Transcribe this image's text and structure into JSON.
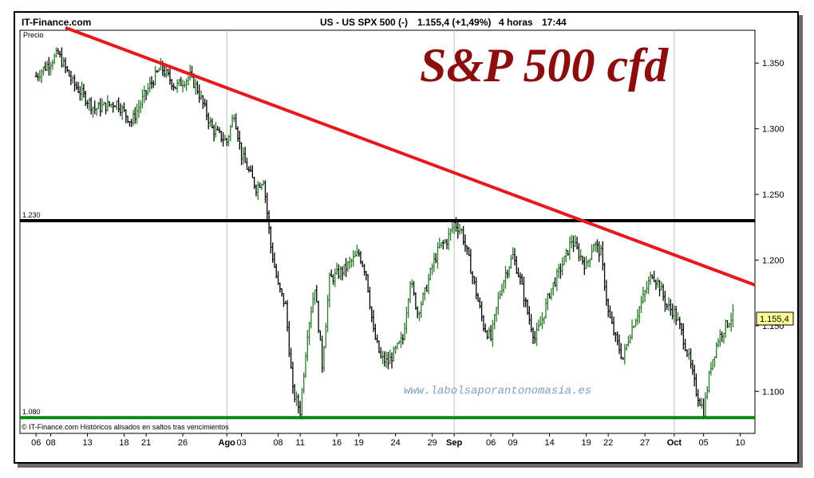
{
  "header": {
    "brand": "IT-Finance.com",
    "instrument": "US - US SPX 500 (-)",
    "price": "1.155,4 (+1,49%)",
    "timeframe": "4 horas",
    "time": "17:44"
  },
  "footer": {
    "copyright": "© IT-Finance.com  Históricos alisados en saltos tras vencimientos"
  },
  "watermark": "www.labolsaporantonomasia.es",
  "colors": {
    "trendline": "#e8191c",
    "resistance": "#000000",
    "support": "#0a8a12",
    "bar_up": "#2a7a2a",
    "bar_down": "#000000",
    "title": "#8b0d0d",
    "last_price_box": "#ffff99"
  },
  "chart_data": {
    "type": "ohlc-bar",
    "title": "S&P 500 cfd",
    "ylabel": "Precio",
    "ylim": [
      1068,
      1375
    ],
    "y_ticks": [
      {
        "value": 1350,
        "label": "1.350"
      },
      {
        "value": 1300,
        "label": "1.300"
      },
      {
        "value": 1250,
        "label": "1.250"
      },
      {
        "value": 1200,
        "label": "1.200"
      },
      {
        "value": 1150,
        "label": "1.150"
      },
      {
        "value": 1100,
        "label": "1.100"
      }
    ],
    "x_ticks": [
      {
        "day": 0,
        "label": "06",
        "month": false
      },
      {
        "day": 2,
        "label": "08",
        "month": false
      },
      {
        "day": 7,
        "label": "13",
        "month": false
      },
      {
        "day": 12,
        "label": "18",
        "month": false
      },
      {
        "day": 15,
        "label": "21",
        "month": false
      },
      {
        "day": 20,
        "label": "26",
        "month": false
      },
      {
        "day": 26,
        "label": "Ago",
        "month": true
      },
      {
        "day": 28,
        "label": "03",
        "month": false
      },
      {
        "day": 33,
        "label": "08",
        "month": false
      },
      {
        "day": 36,
        "label": "11",
        "month": false
      },
      {
        "day": 41,
        "label": "16",
        "month": false
      },
      {
        "day": 44,
        "label": "19",
        "month": false
      },
      {
        "day": 49,
        "label": "24",
        "month": false
      },
      {
        "day": 54,
        "label": "29",
        "month": false
      },
      {
        "day": 57,
        "label": "Sep",
        "month": true
      },
      {
        "day": 62,
        "label": "06",
        "month": false
      },
      {
        "day": 65,
        "label": "09",
        "month": false
      },
      {
        "day": 70,
        "label": "14",
        "month": false
      },
      {
        "day": 75,
        "label": "19",
        "month": false
      },
      {
        "day": 78,
        "label": "22",
        "month": false
      },
      {
        "day": 83,
        "label": "27",
        "month": false
      },
      {
        "day": 87,
        "label": "Oct",
        "month": true
      },
      {
        "day": 91,
        "label": "05",
        "month": false
      },
      {
        "day": 96,
        "label": "10",
        "month": false
      }
    ],
    "x_range_days": [
      -2.2,
      98
    ],
    "vertical_grid_days": [
      26,
      57,
      87
    ],
    "levels": [
      {
        "name": "resistance",
        "value": 1230,
        "label": "1.230"
      },
      {
        "name": "support",
        "value": 1080,
        "label": "1.080"
      }
    ],
    "trendline": [
      {
        "day": 4,
        "value": 1377
      },
      {
        "day": 98,
        "value": 1181
      }
    ],
    "last_price": {
      "value": 1155.4,
      "label": "1.155,4"
    },
    "anchors": [
      [
        0,
        1340
      ],
      [
        3,
        1357
      ],
      [
        5,
        1335
      ],
      [
        8,
        1315
      ],
      [
        11,
        1320
      ],
      [
        13,
        1305
      ],
      [
        15,
        1328
      ],
      [
        17,
        1347
      ],
      [
        19,
        1332
      ],
      [
        21,
        1340
      ],
      [
        22,
        1330
      ],
      [
        24,
        1300
      ],
      [
        26,
        1290
      ],
      [
        27,
        1312
      ],
      [
        28,
        1280
      ],
      [
        30,
        1255
      ],
      [
        31,
        1262
      ],
      [
        32,
        1210
      ],
      [
        33,
        1180
      ],
      [
        34,
        1165
      ],
      [
        35,
        1100
      ],
      [
        36,
        1085
      ],
      [
        37,
        1145
      ],
      [
        38,
        1180
      ],
      [
        39,
        1120
      ],
      [
        40,
        1185
      ],
      [
        42,
        1193
      ],
      [
        44,
        1205
      ],
      [
        45,
        1190
      ],
      [
        46,
        1145
      ],
      [
        47,
        1125
      ],
      [
        48,
        1122
      ],
      [
        50,
        1140
      ],
      [
        51,
        1185
      ],
      [
        52,
        1160
      ],
      [
        53,
        1175
      ],
      [
        54,
        1195
      ],
      [
        55,
        1210
      ],
      [
        56,
        1215
      ],
      [
        57,
        1228
      ],
      [
        58,
        1222
      ],
      [
        59,
        1200
      ],
      [
        60,
        1175
      ],
      [
        61,
        1150
      ],
      [
        62,
        1140
      ],
      [
        63,
        1170
      ],
      [
        64,
        1190
      ],
      [
        65,
        1203
      ],
      [
        66,
        1185
      ],
      [
        67,
        1160
      ],
      [
        68,
        1140
      ],
      [
        69,
        1155
      ],
      [
        70,
        1175
      ],
      [
        72,
        1200
      ],
      [
        73,
        1215
      ],
      [
        74,
        1205
      ],
      [
        75,
        1195
      ],
      [
        76,
        1213
      ],
      [
        77,
        1205
      ],
      [
        78,
        1160
      ],
      [
        79,
        1140
      ],
      [
        80,
        1125
      ],
      [
        81,
        1145
      ],
      [
        82,
        1160
      ],
      [
        83,
        1175
      ],
      [
        84,
        1190
      ],
      [
        85,
        1180
      ],
      [
        86,
        1165
      ],
      [
        87,
        1160
      ],
      [
        88,
        1145
      ],
      [
        89,
        1125
      ],
      [
        90,
        1100
      ],
      [
        91,
        1085
      ],
      [
        92,
        1120
      ],
      [
        93,
        1140
      ],
      [
        94,
        1150
      ],
      [
        95,
        1158
      ]
    ]
  }
}
